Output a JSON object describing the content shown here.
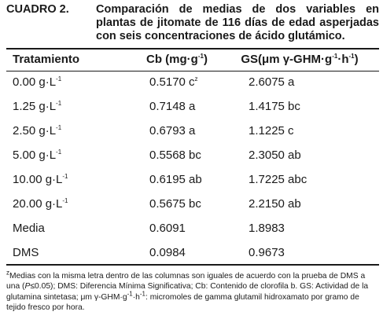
{
  "caption": {
    "label": "CUADRO 2.",
    "text": "Comparación de medias de dos variables en plantas de jitomate de 116 días de edad asperjadas con seis concentraciones de ácido glutámico."
  },
  "headers": [
    "Tratamiento",
    "Cb (mg·g",
    "-1",
    ")",
    "GS(μm γ-GHM·g",
    "-1",
    "·h",
    "-1",
    ")"
  ],
  "rows": [
    {
      "t": "0.00 g·L",
      "t_sup": "-1",
      "cb": "0.5170 c",
      "cb_sup": "z",
      "gs": "2.6075  a"
    },
    {
      "t": "1.25 g·L",
      "t_sup": "-1",
      "cb": "0.7148 a",
      "cb_sup": "",
      "gs": "1.4175 bc"
    },
    {
      "t": "2.50 g·L",
      "t_sup": "-1",
      "cb": "0.6793 a",
      "cb_sup": "",
      "gs": "1.1225 c"
    },
    {
      "t": "5.00 g·L",
      "t_sup": "-1",
      "cb": "0.5568 bc",
      "cb_sup": "",
      "gs": "2.3050 ab"
    },
    {
      "t": "10.00 g·L",
      "t_sup": "-1",
      "cb": "0.6195 ab",
      "cb_sup": "",
      "gs": "1.7225 abc"
    },
    {
      "t": "20.00 g·L",
      "t_sup": "-1",
      "cb": "0.5675 bc",
      "cb_sup": "",
      "gs": "2.2150 ab"
    },
    {
      "t": "Media",
      "t_sup": "",
      "cb": "0.6091",
      "cb_sup": "",
      "gs": "1.8983"
    },
    {
      "t": "DMS",
      "t_sup": "",
      "cb": "0.0984",
      "cb_sup": "",
      "gs": "0.9673"
    }
  ],
  "footnote": {
    "z": "z",
    "p1": "Medias con la misma letra dentro de las columnas son iguales de acuerdo con la prueba de DMS a una (",
    "p_italic": "P",
    "p2": "≤0.05); DMS: Diferencia Mínima Significativa; Cb: Contenido de clorofila b. GS: Actividad de la glutamina sintetasa; μm γ-GHM·g",
    "s1": "-1",
    "p3": "·h",
    "s2": "-1",
    "p4": ": micromoles de gamma glutamil hidroxamato por gramo de tejido fresco por hora."
  }
}
